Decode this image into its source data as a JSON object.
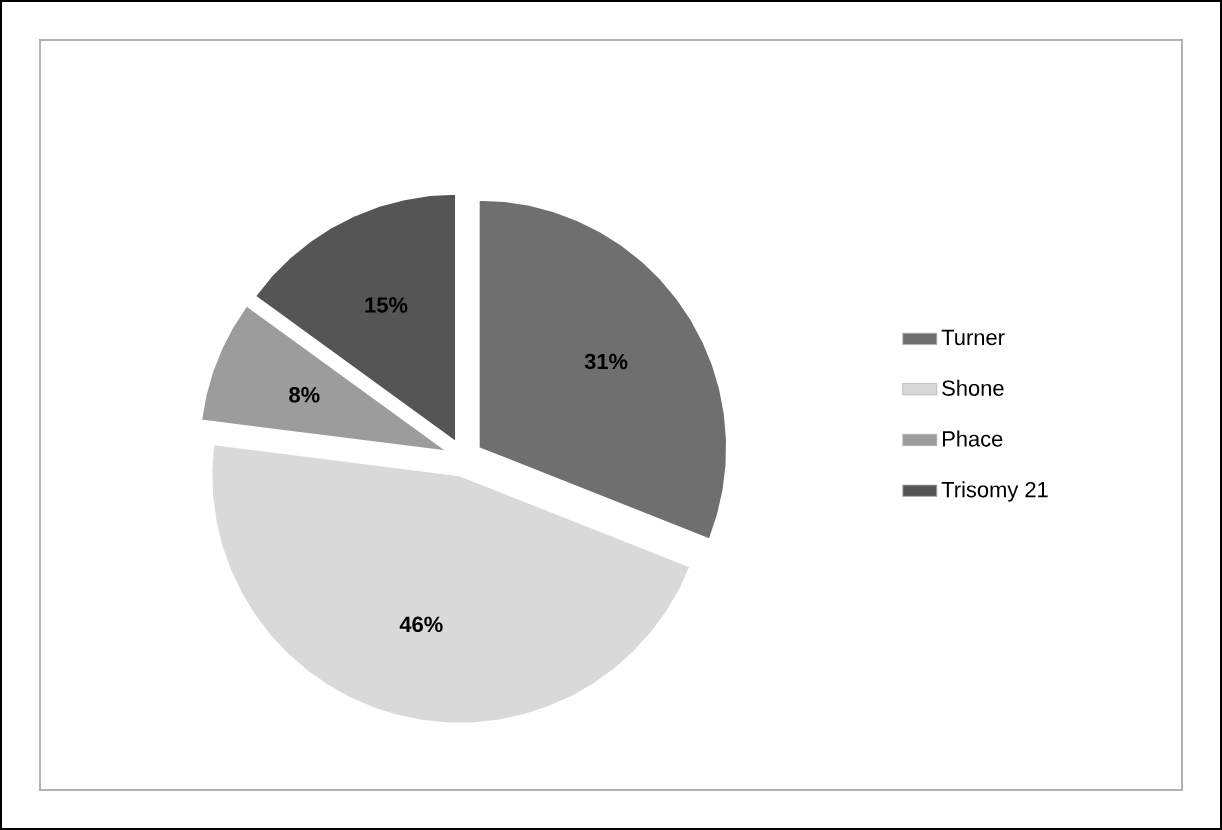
{
  "chart_data": {
    "type": "pie",
    "categories": [
      "Turner",
      "Shone",
      "Phace",
      "Trisomy 21"
    ],
    "values": [
      31,
      46,
      8,
      15
    ],
    "colors": [
      "#6f6f6f",
      "#d9d9d9",
      "#9c9c9c",
      "#555555"
    ],
    "value_labels": [
      "31%",
      "46%",
      "8%",
      "15%"
    ],
    "legend": "right"
  }
}
